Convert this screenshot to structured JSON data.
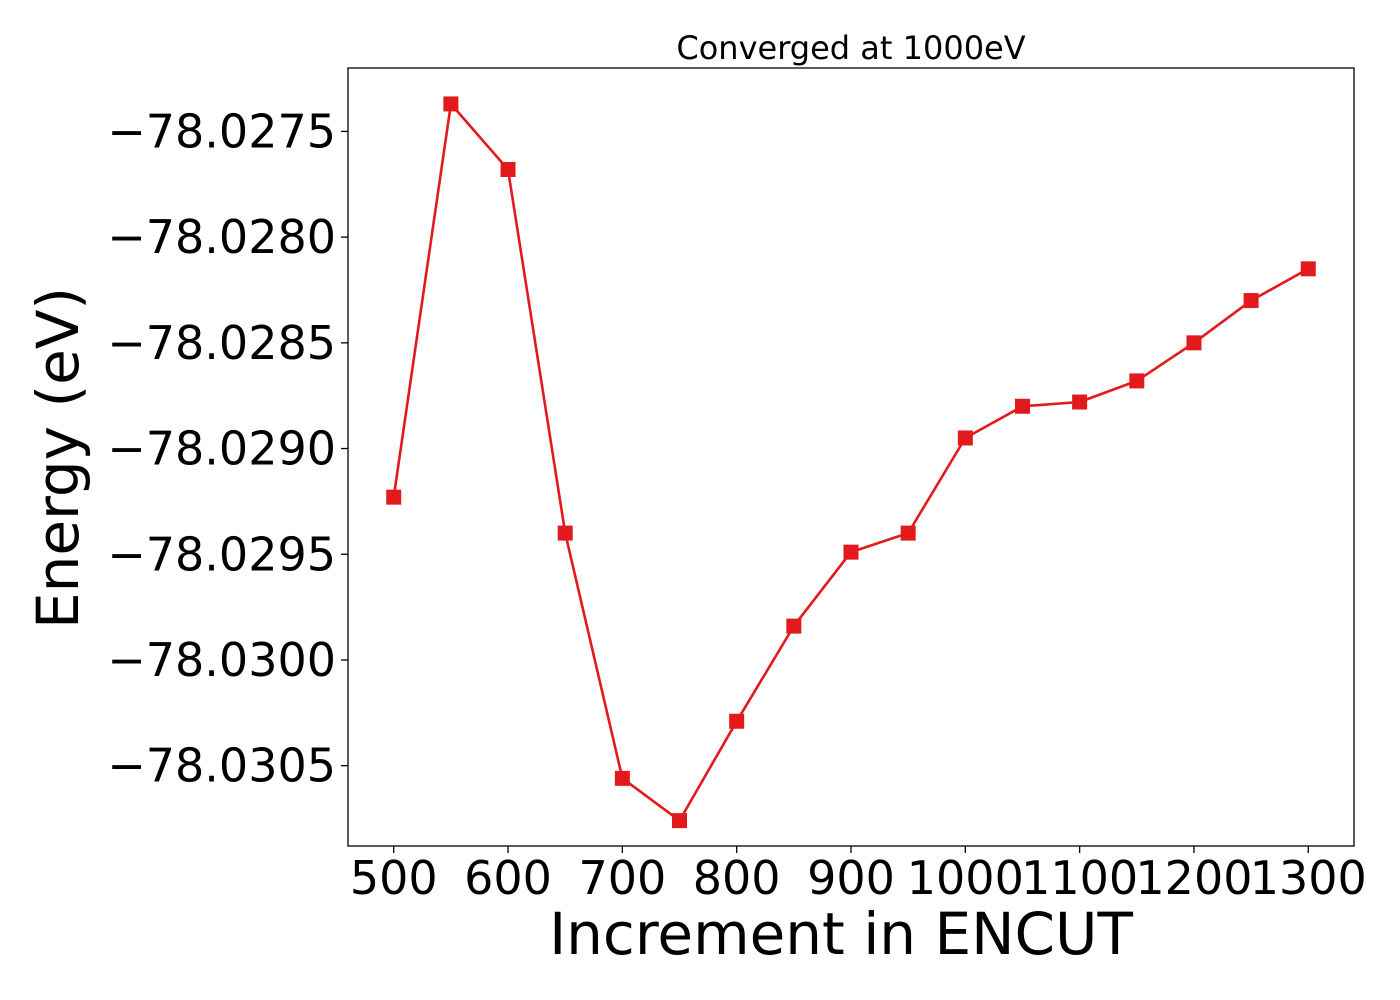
{
  "chart_data": {
    "type": "line",
    "title": "Converged at 1000eV",
    "xlabel": "Increment in ENCUT",
    "ylabel": "Energy (eV)",
    "xlim": [
      460,
      1340
    ],
    "ylim": [
      -78.03088,
      -78.0272
    ],
    "x_ticks": [
      500,
      600,
      700,
      800,
      900,
      1000,
      1100,
      1200,
      1300
    ],
    "x_tick_labels": [
      "500",
      "600",
      "700",
      "800",
      "900",
      "1000",
      "1100",
      "1200",
      "1300"
    ],
    "y_ticks": [
      -78.0275,
      -78.028,
      -78.0285,
      -78.029,
      -78.0295,
      -78.03,
      -78.0305
    ],
    "y_tick_labels": [
      "−78.0275",
      "−78.0280",
      "−78.0285",
      "−78.0290",
      "−78.0295",
      "−78.0300",
      "−78.0305"
    ],
    "grid": false,
    "series": [
      {
        "color": "#e31a1c",
        "marker": "square",
        "x": [
          500,
          550,
          600,
          650,
          700,
          750,
          800,
          850,
          900,
          950,
          1000,
          1050,
          1100,
          1150,
          1200,
          1250,
          1300
        ],
        "y": [
          -78.02923,
          -78.02737,
          -78.02768,
          -78.0294,
          -78.03056,
          -78.03076,
          -78.03029,
          -78.02984,
          -78.02949,
          -78.0294,
          -78.02895,
          -78.0288,
          -78.02878,
          -78.02868,
          -78.0285,
          -78.0283,
          -78.02815
        ]
      }
    ]
  }
}
